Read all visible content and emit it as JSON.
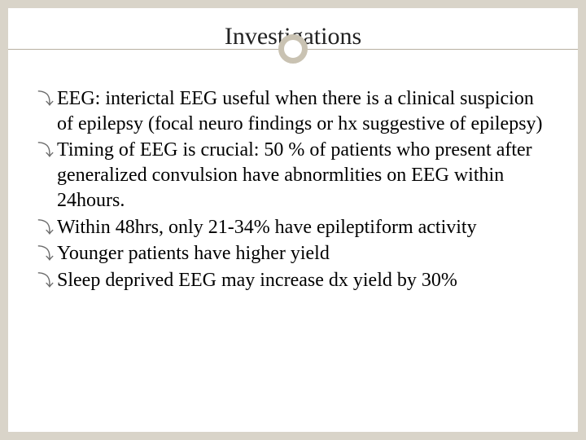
{
  "slide": {
    "title": "Investigations",
    "title_fontsize": 30,
    "title_color": "#222222",
    "accent_color": "#c9c2b2",
    "line_color": "#b8b0a0",
    "background_color": "#d9d4c9",
    "slide_background": "#ffffff",
    "bullet_glyph": "⤵",
    "bullets": [
      "EEG: interictal EEG useful when there is a clinical suspicion of epilepsy (focal neuro findings or hx suggestive of epilepsy)",
      "Timing of EEG is crucial: 50 % of patients who present after generalized convulsion have abnormlities on EEG within 24hours.",
      "Within 48hrs, only 21-34% have epileptiform activity",
      "Younger patients have higher yield",
      "Sleep deprived EEG may increase dx yield by 30%"
    ],
    "body_fontsize": 24,
    "body_color": "#000000",
    "bullet_marker_color": "#6b6b6b"
  }
}
